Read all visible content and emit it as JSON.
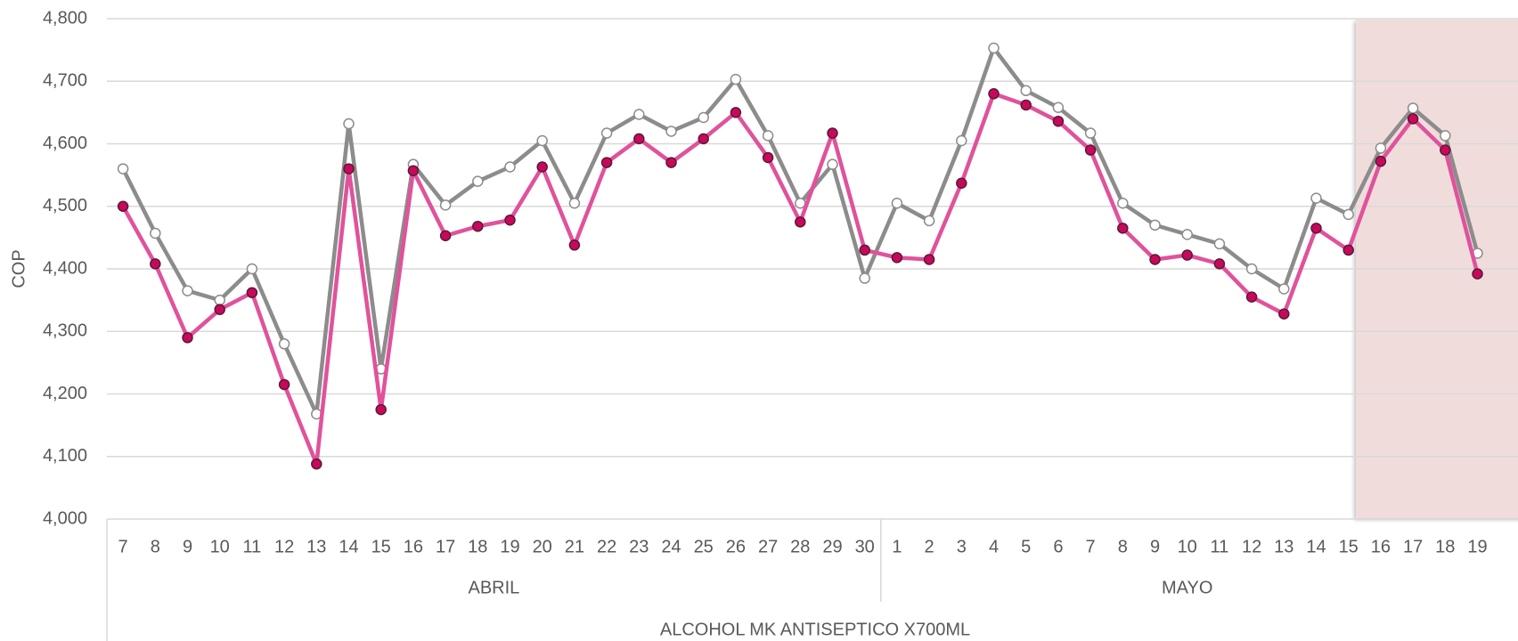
{
  "chart_data": {
    "type": "line",
    "y_label": "COP",
    "x_group_label": "ALCOHOL MK ANTISEPTICO X700ML",
    "groups": [
      {
        "label": "ABRIL",
        "categories": [
          "7",
          "8",
          "9",
          "10",
          "11",
          "12",
          "13",
          "14",
          "15",
          "16",
          "17",
          "18",
          "19",
          "20",
          "21",
          "22",
          "23",
          "24",
          "25",
          "26",
          "27",
          "28",
          "29",
          "30"
        ]
      },
      {
        "label": "MAYO",
        "categories": [
          "1",
          "2",
          "3",
          "4",
          "5",
          "6",
          "7",
          "8",
          "9",
          "10",
          "11",
          "12",
          "13",
          "14",
          "15",
          "16",
          "17",
          "18",
          "19"
        ]
      }
    ],
    "ylim": [
      4000,
      4800
    ],
    "yticks": [
      {
        "value": 4000,
        "label": "4,000"
      },
      {
        "value": 4100,
        "label": "4,100"
      },
      {
        "value": 4200,
        "label": "4,200"
      },
      {
        "value": 4300,
        "label": "4,300"
      },
      {
        "value": 4400,
        "label": "4,400"
      },
      {
        "value": 4500,
        "label": "4,500"
      },
      {
        "value": 4600,
        "label": "4,600"
      },
      {
        "value": 4700,
        "label": "4,700"
      },
      {
        "value": 4800,
        "label": "4,800"
      }
    ],
    "grid": true,
    "series": [
      {
        "color": "#8c8c8c",
        "marker": "hollow",
        "values": [
          4560,
          4457,
          4365,
          4350,
          4400,
          4280,
          4168,
          4632,
          4240,
          4567,
          4502,
          4540,
          4563,
          4605,
          4505,
          4617,
          4647,
          4620,
          4642,
          4703,
          4613,
          4505,
          4567,
          4385,
          4505,
          4477,
          4605,
          4753,
          4685,
          4658,
          4617,
          4505,
          4470,
          4455,
          4440,
          4400,
          4368,
          4513,
          4487,
          4593,
          4657,
          4613,
          4425
        ]
      },
      {
        "color": "#e0529c",
        "marker": "filled",
        "values": [
          4500,
          4408,
          4290,
          4335,
          4362,
          4215,
          4088,
          4560,
          4175,
          4557,
          4453,
          4468,
          4478,
          4563,
          4438,
          4570,
          4608,
          4570,
          4608,
          4650,
          4578,
          4475,
          4617,
          4430,
          4418,
          4415,
          4537,
          4680,
          4662,
          4636,
          4590,
          4465,
          4415,
          4422,
          4408,
          4355,
          4328,
          4465,
          4430,
          4572,
          4640,
          4590,
          4392
        ]
      }
    ]
  }
}
